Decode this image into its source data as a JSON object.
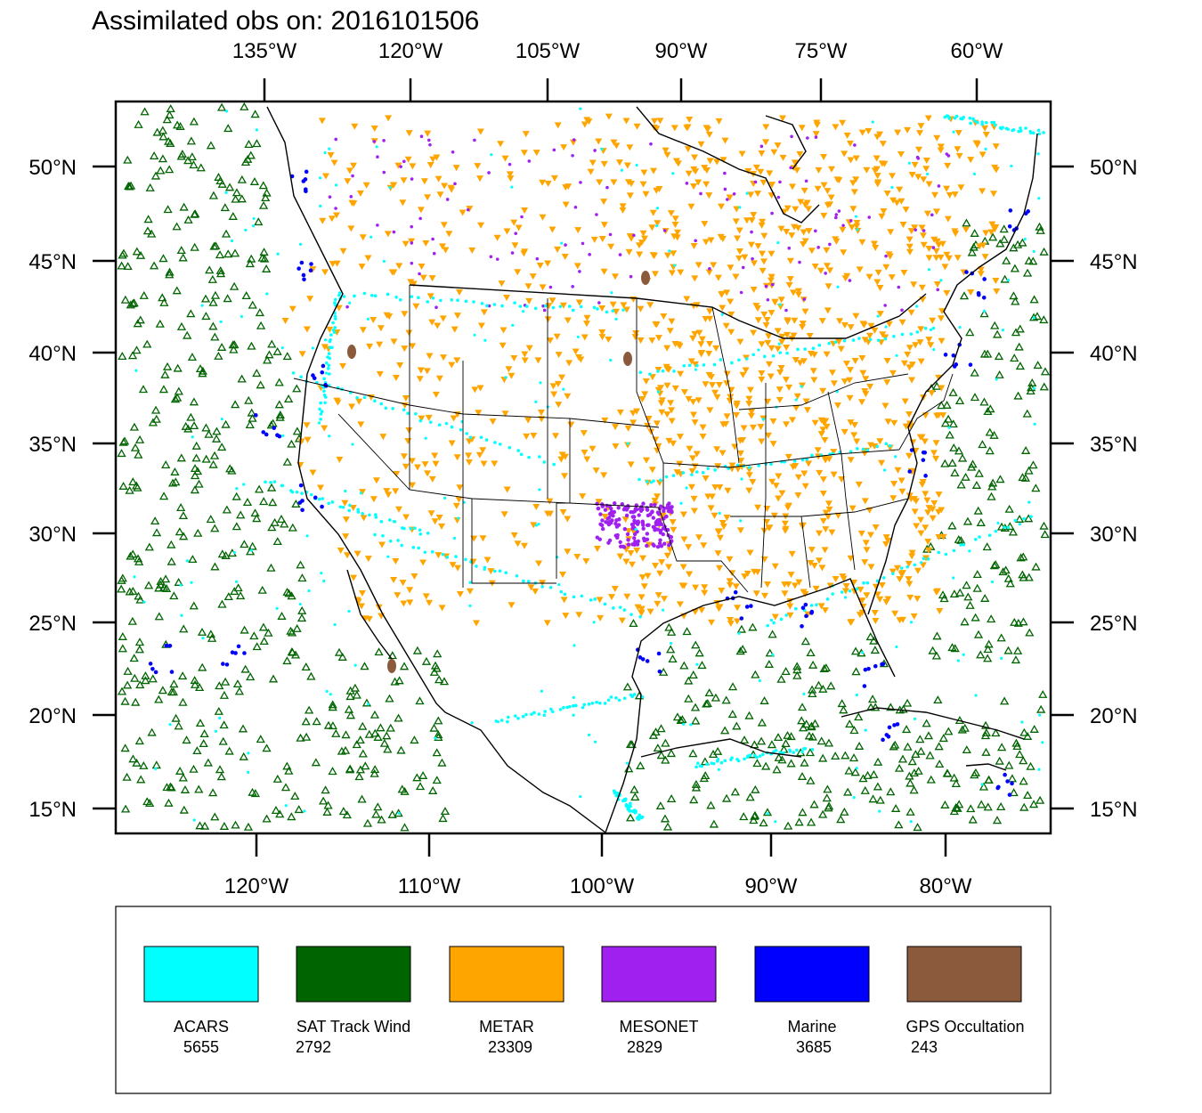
{
  "title": "Assimilated obs on: 2016101506",
  "top_axis": [
    "135°W",
    "120°W",
    "105°W",
    "90°W",
    "75°W",
    "60°W"
  ],
  "bottom_axis": [
    "120°W",
    "110°W",
    "100°W",
    "90°W",
    "80°W"
  ],
  "left_axis": [
    "50°N",
    "45°N",
    "40°N",
    "35°N",
    "30°N",
    "25°N",
    "20°N",
    "15°N"
  ],
  "right_axis": [
    "50°N",
    "45°N",
    "40°N",
    "35°N",
    "30°N",
    "25°N",
    "20°N",
    "15°N"
  ],
  "legend": [
    {
      "name": "ACARS",
      "count": "5655",
      "color": "#00ffff"
    },
    {
      "name": "SAT Track Wind",
      "count": "2792",
      "color": "#006400"
    },
    {
      "name": "METAR",
      "count": "23309",
      "color": "#ffa500"
    },
    {
      "name": "MESONET",
      "count": "2829",
      "color": "#a020f0"
    },
    {
      "name": "Marine",
      "count": "3685",
      "color": "#0000ff"
    },
    {
      "name": "GPS Occultation",
      "count": "243",
      "color": "#8b5a3c"
    }
  ]
}
